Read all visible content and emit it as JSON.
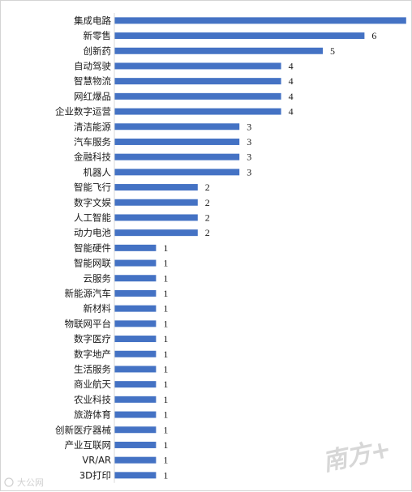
{
  "chart_data": {
    "type": "bar",
    "orientation": "horizontal",
    "categories": [
      "集成电路",
      "新零售",
      "创新药",
      "自动驾驶",
      "智慧物流",
      "网红爆品",
      "企业数字运营",
      "清洁能源",
      "汽车服务",
      "金融科技",
      "机器人",
      "智能飞行",
      "数字文娱",
      "人工智能",
      "动力电池",
      "智能硬件",
      "智能网联",
      "云服务",
      "新能源汽车",
      "新材料",
      "物联网平台",
      "数字医疗",
      "数字地产",
      "生活服务",
      "商业航天",
      "农业科技",
      "旅游体育",
      "创新医疗器械",
      "产业互联网",
      "VR/AR",
      "3D打印"
    ],
    "values": [
      7,
      6,
      5,
      4,
      4,
      4,
      4,
      3,
      3,
      3,
      3,
      2,
      2,
      2,
      2,
      1,
      1,
      1,
      1,
      1,
      1,
      1,
      1,
      1,
      1,
      1,
      1,
      1,
      1,
      1,
      1
    ],
    "title": "",
    "xlabel": "",
    "ylabel": "",
    "xlim": [
      0,
      8
    ],
    "grid": false,
    "legend": "none",
    "bar_color": "#4472C4",
    "data_labels": true
  },
  "watermark": {
    "logo_text": "南方+",
    "credit_text": "大公网",
    "color": "#b8b8b8"
  }
}
